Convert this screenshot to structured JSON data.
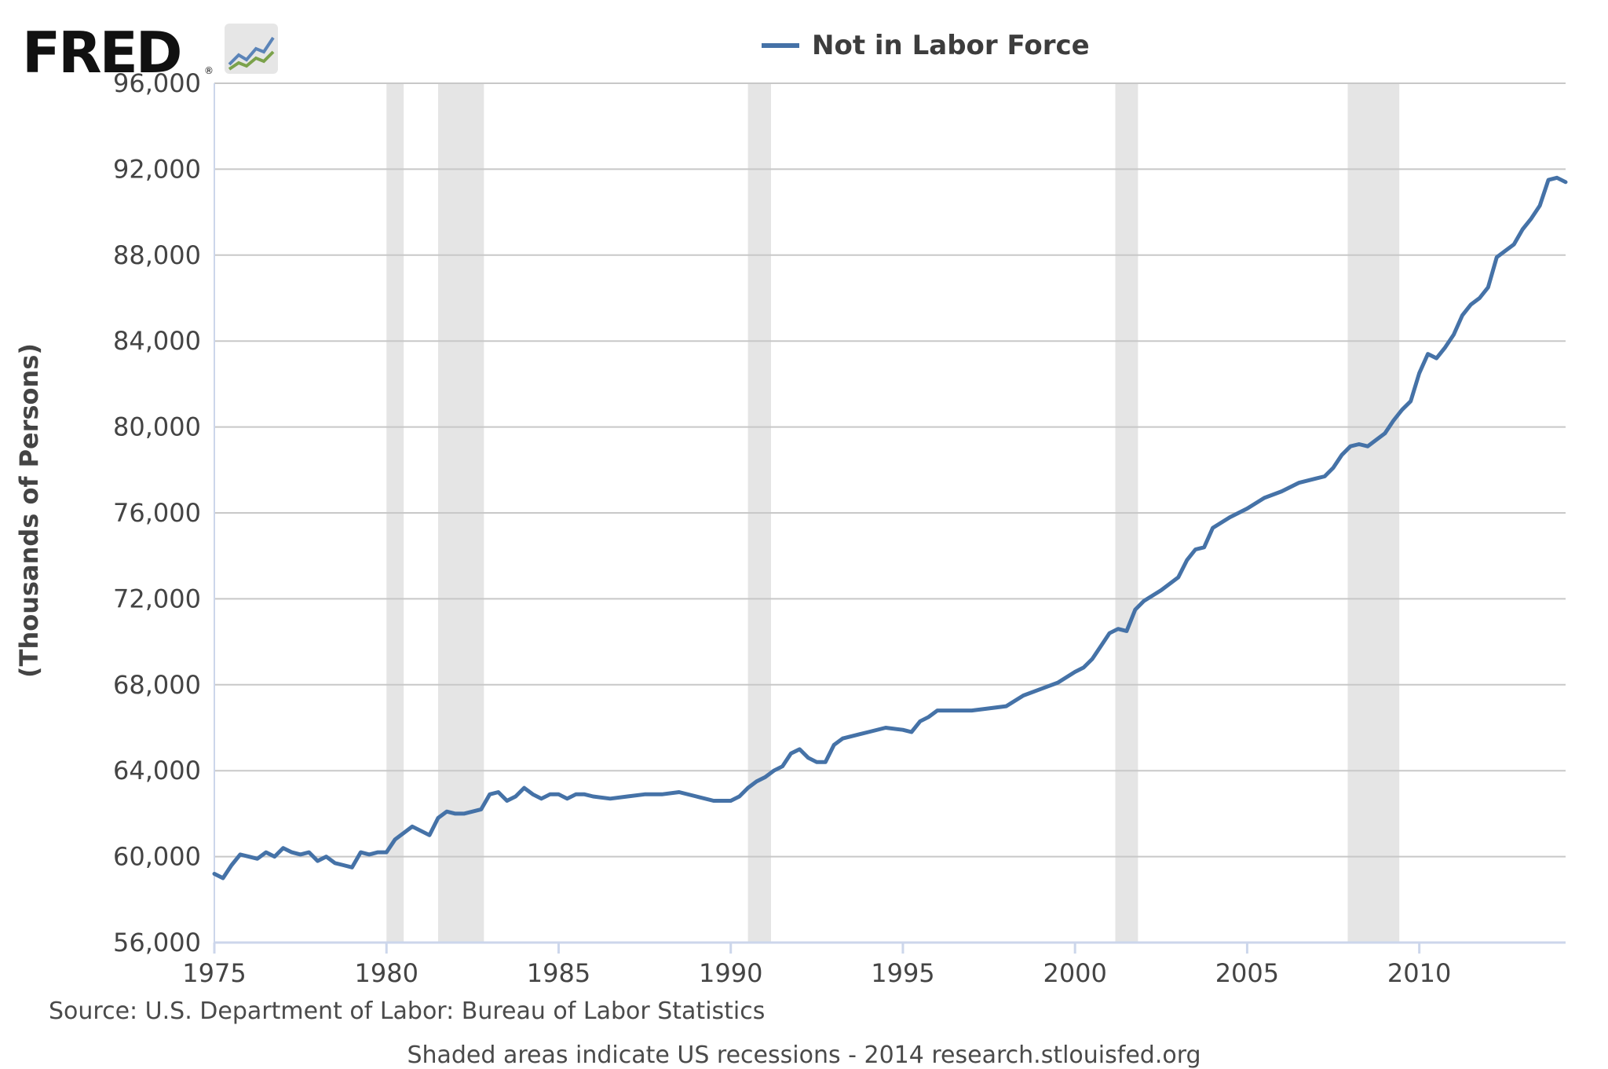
{
  "logo": {
    "text": "FRED",
    "mark": "®",
    "icon": "line-chart-icon"
  },
  "legend": {
    "label": "Not in Labor Force",
    "color": "#4572a7"
  },
  "source_text": "Source: U.S. Department of Labor: Bureau of Labor Statistics",
  "footer_note": "Shaded areas indicate US recessions - 2014 research.stlouisfed.org",
  "chart_data": {
    "type": "line",
    "title": "",
    "xlabel": "",
    "ylabel": "(Thousands of Persons)",
    "x_range": [
      1975.0,
      2014.25
    ],
    "ylim": [
      56000,
      96000
    ],
    "x_ticks": [
      "1975",
      "1980",
      "1985",
      "1990",
      "1995",
      "2000",
      "2005",
      "2010"
    ],
    "y_ticks": [
      "56,000",
      "60,000",
      "64,000",
      "68,000",
      "72,000",
      "76,000",
      "80,000",
      "84,000",
      "88,000",
      "92,000",
      "96,000"
    ],
    "grid": true,
    "legend_position": "top-center",
    "colors": {
      "series": "#4572a7",
      "recession": "#e5e5e5",
      "grid": "#c8c8c8",
      "axis": "#ccd6eb"
    },
    "recessions": [
      [
        1980.0,
        1980.5
      ],
      [
        1981.5,
        1982.83
      ],
      [
        1990.5,
        1991.17
      ],
      [
        2001.17,
        2001.83
      ],
      [
        2007.92,
        2009.42
      ]
    ],
    "series": [
      {
        "name": "Not in Labor Force",
        "x": [
          1975.0,
          1975.25,
          1975.5,
          1975.75,
          1976.0,
          1976.25,
          1976.5,
          1976.75,
          1977.0,
          1977.25,
          1977.5,
          1977.75,
          1978.0,
          1978.25,
          1978.5,
          1978.75,
          1979.0,
          1979.25,
          1979.5,
          1979.75,
          1980.0,
          1980.25,
          1980.5,
          1980.75,
          1981.0,
          1981.25,
          1981.5,
          1981.75,
          1982.0,
          1982.25,
          1982.5,
          1982.75,
          1983.0,
          1983.25,
          1983.5,
          1983.75,
          1984.0,
          1984.25,
          1984.5,
          1984.75,
          1985.0,
          1985.25,
          1985.5,
          1985.75,
          1986.0,
          1986.5,
          1987.0,
          1987.5,
          1988.0,
          1988.5,
          1989.0,
          1989.5,
          1990.0,
          1990.25,
          1990.5,
          1990.75,
          1991.0,
          1991.25,
          1991.5,
          1991.75,
          1992.0,
          1992.25,
          1992.5,
          1992.75,
          1993.0,
          1993.25,
          1993.5,
          1993.75,
          1994.0,
          1994.5,
          1995.0,
          1995.25,
          1995.5,
          1995.75,
          1996.0,
          1996.5,
          1997.0,
          1997.5,
          1998.0,
          1998.5,
          1999.0,
          1999.5,
          2000.0,
          2000.25,
          2000.5,
          2000.75,
          2001.0,
          2001.25,
          2001.5,
          2001.75,
          2002.0,
          2002.5,
          2003.0,
          2003.25,
          2003.5,
          2003.75,
          2004.0,
          2004.5,
          2005.0,
          2005.5,
          2006.0,
          2006.5,
          2007.0,
          2007.25,
          2007.5,
          2007.75,
          2008.0,
          2008.25,
          2008.5,
          2008.75,
          2009.0,
          2009.25,
          2009.5,
          2009.75,
          2010.0,
          2010.25,
          2010.5,
          2010.75,
          2011.0,
          2011.25,
          2011.5,
          2011.75,
          2012.0,
          2012.25,
          2012.5,
          2012.75,
          2013.0,
          2013.25,
          2013.5,
          2013.75,
          2014.0,
          2014.25
        ],
        "values": [
          59200,
          59000,
          59600,
          60100,
          60000,
          59900,
          60200,
          60000,
          60400,
          60200,
          60100,
          60200,
          59800,
          60000,
          59700,
          59600,
          59500,
          60200,
          60100,
          60200,
          60200,
          60800,
          61100,
          61400,
          61200,
          61000,
          61800,
          62100,
          62000,
          62000,
          62100,
          62200,
          62900,
          63000,
          62600,
          62800,
          63200,
          62900,
          62700,
          62900,
          62900,
          62700,
          62900,
          62900,
          62800,
          62700,
          62800,
          62900,
          62900,
          63000,
          62800,
          62600,
          62600,
          62800,
          63200,
          63500,
          63700,
          64000,
          64200,
          64800,
          65000,
          64600,
          64400,
          64400,
          65200,
          65500,
          65600,
          65700,
          65800,
          66000,
          65900,
          65800,
          66300,
          66500,
          66800,
          66800,
          66800,
          66900,
          67000,
          67500,
          67800,
          68100,
          68600,
          68800,
          69200,
          69800,
          70400,
          70600,
          70500,
          71500,
          71900,
          72400,
          73000,
          73800,
          74300,
          74400,
          75300,
          75800,
          76200,
          76700,
          77000,
          77400,
          77600,
          77700,
          78100,
          78700,
          79100,
          79200,
          79100,
          79400,
          79700,
          80300,
          80800,
          81200,
          82500,
          83400,
          83200,
          83700,
          84300,
          85200,
          85700,
          86000,
          86500,
          87900,
          88200,
          88500,
          89200,
          89700,
          90300,
          91500,
          91600,
          91400
        ]
      }
    ]
  }
}
